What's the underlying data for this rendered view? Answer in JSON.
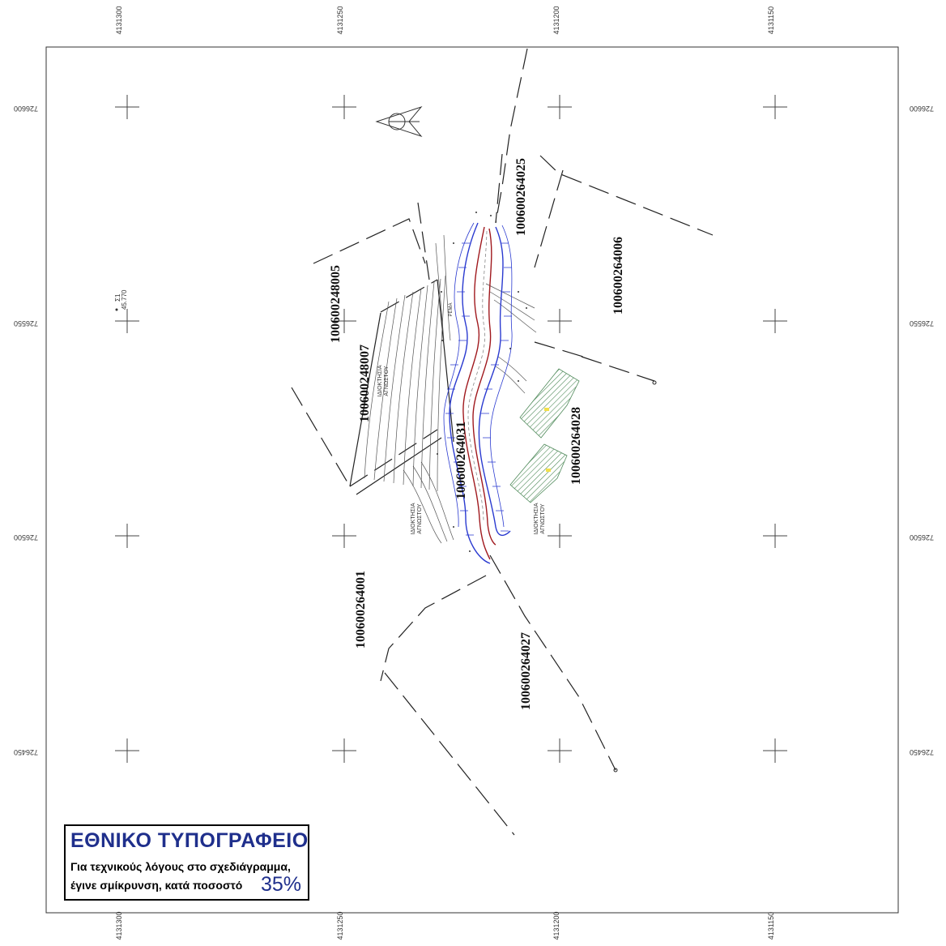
{
  "grid": {
    "easting_labels": [
      "4131300",
      "4131250",
      "4131200",
      "4131150"
    ],
    "northing_labels": [
      "726600",
      "726550",
      "726500",
      "726450"
    ]
  },
  "parcels": [
    {
      "id": "100600248005"
    },
    {
      "id": "100600248007"
    },
    {
      "id": "100600264025"
    },
    {
      "id": "100600264006"
    },
    {
      "id": "100600264028"
    },
    {
      "id": "100600264001"
    },
    {
      "id": "100600264027"
    },
    {
      "id": "100600264031"
    }
  ],
  "ownership_labels": {
    "a_line1": "ΙΔΙΟΚΤΗΣΙΑ",
    "a_line2": "ΑΓΝΩΣΤΟΥ",
    "b_line1": "ΙΔΙΟΚΤΗΣΙΑ",
    "b_line2": "ΑΓΝΩΣΤΟΥ",
    "c_line1": "ΙΔΙΟΚΤΗΣΙΑ",
    "c_line2": "ΑΓΝΩΣΤΟΥ"
  },
  "control_point": {
    "name": "Σ1",
    "elevation": "45.770"
  },
  "stream_label": "ΡΕΜΑ",
  "stamp": {
    "title": "ΕΘΝΙΚΟ ΤΥΠΟΓΡΑΦΕΙΟ",
    "line1": "Για τεχνικούς λόγους στο σχεδιάγραμμα,",
    "line2": "έγινε σμίκρυνση, κατά ποσοστό",
    "percent": "35%"
  },
  "colors": {
    "stream_red": "#a0191e",
    "stream_blue": "#2a3ad0",
    "hatch_green": "#4f8a5a",
    "stamp_blue": "#1f2f8c"
  }
}
